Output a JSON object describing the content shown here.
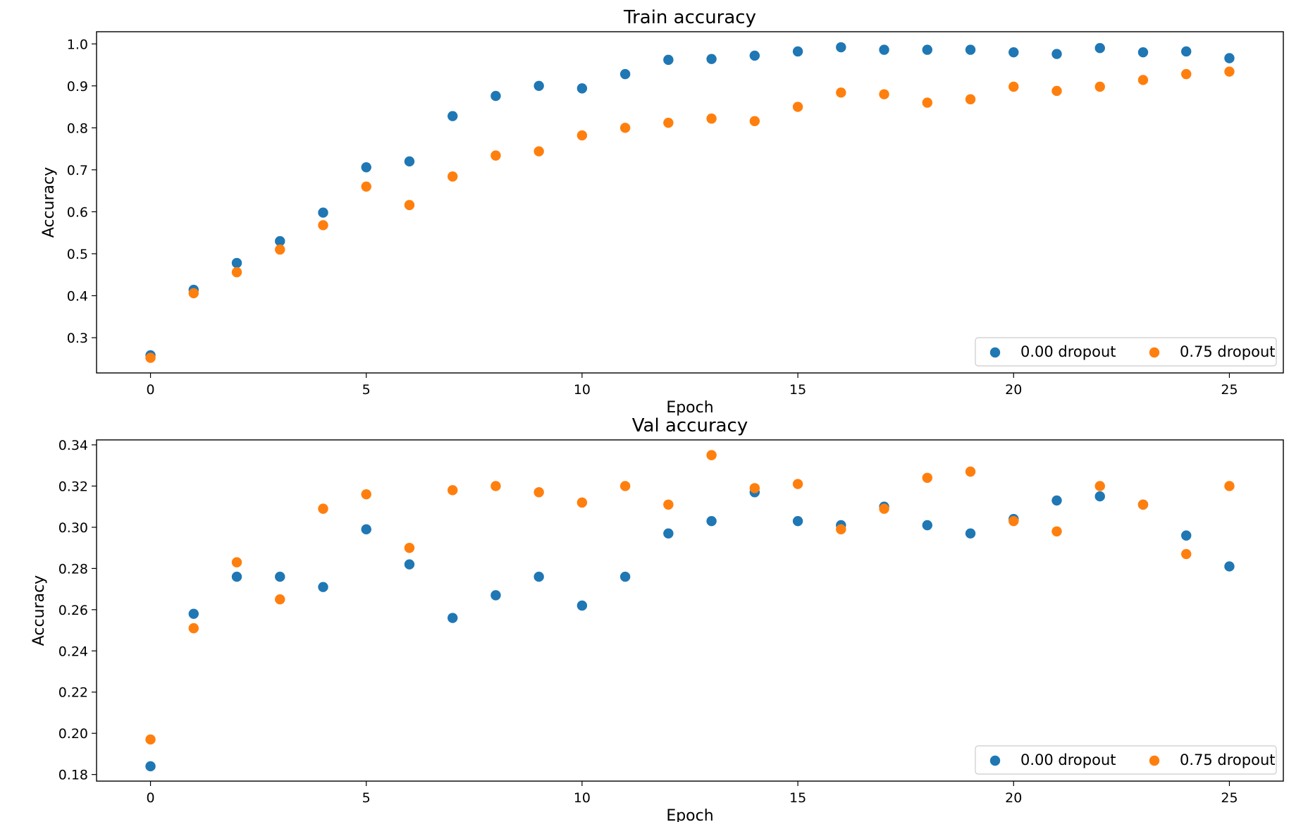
{
  "colors": {
    "series0": "#1f77b4",
    "series1": "#ff7f0e"
  },
  "chart_data": [
    {
      "type": "scatter",
      "title": "Train accuracy",
      "xlabel": "Epoch",
      "ylabel": "Accuracy",
      "xlim": [
        -1.25,
        26.25
      ],
      "ylim": [
        0.216,
        1.029
      ],
      "xticks": [
        0,
        5,
        10,
        15,
        20,
        25
      ],
      "yticks": [
        0.3,
        0.4,
        0.5,
        0.6,
        0.7,
        0.8,
        0.9,
        1.0
      ],
      "xtick_labels": [
        "0",
        "5",
        "10",
        "15",
        "20",
        "25"
      ],
      "ytick_labels": [
        "0.3",
        "0.4",
        "0.5",
        "0.6",
        "0.7",
        "0.8",
        "0.9",
        "1.0"
      ],
      "grid": false,
      "legend_position": "lower right",
      "x": [
        0,
        1,
        2,
        3,
        4,
        5,
        6,
        7,
        8,
        9,
        10,
        11,
        12,
        13,
        14,
        15,
        16,
        17,
        18,
        19,
        20,
        21,
        22,
        23,
        24,
        25
      ],
      "series": [
        {
          "name": "0.00 dropout",
          "color": "#1f77b4",
          "values": [
            0.258,
            0.414,
            0.478,
            0.53,
            0.598,
            0.706,
            0.72,
            0.828,
            0.876,
            0.9,
            0.894,
            0.928,
            0.962,
            0.964,
            0.972,
            0.982,
            0.992,
            0.986,
            0.986,
            0.986,
            0.98,
            0.976,
            0.99,
            0.98,
            0.982,
            0.966
          ]
        },
        {
          "name": "0.75 dropout",
          "color": "#ff7f0e",
          "values": [
            0.252,
            0.406,
            0.456,
            0.51,
            0.568,
            0.66,
            0.616,
            0.684,
            0.734,
            0.744,
            0.782,
            0.8,
            0.812,
            0.822,
            0.816,
            0.85,
            0.884,
            0.88,
            0.86,
            0.868,
            0.898,
            0.888,
            0.898,
            0.914,
            0.928,
            0.934
          ]
        }
      ]
    },
    {
      "type": "scatter",
      "title": "Val accuracy",
      "xlabel": "Epoch",
      "ylabel": "Accuracy",
      "xlim": [
        -1.25,
        26.25
      ],
      "ylim": [
        0.1768,
        0.3424
      ],
      "xticks": [
        0,
        5,
        10,
        15,
        20,
        25
      ],
      "yticks": [
        0.18,
        0.2,
        0.22,
        0.24,
        0.26,
        0.28,
        0.3,
        0.32,
        0.34
      ],
      "xtick_labels": [
        "0",
        "5",
        "10",
        "15",
        "20",
        "25"
      ],
      "ytick_labels": [
        "0.18",
        "0.20",
        "0.22",
        "0.24",
        "0.26",
        "0.28",
        "0.30",
        "0.32",
        "0.34"
      ],
      "grid": false,
      "legend_position": "lower right",
      "x": [
        0,
        1,
        2,
        3,
        4,
        5,
        6,
        7,
        8,
        9,
        10,
        11,
        12,
        13,
        14,
        15,
        16,
        17,
        18,
        19,
        20,
        21,
        22,
        23,
        24,
        25
      ],
      "series": [
        {
          "name": "0.00 dropout",
          "color": "#1f77b4",
          "values": [
            0.184,
            0.258,
            0.276,
            0.276,
            0.271,
            0.299,
            0.282,
            0.256,
            0.267,
            0.276,
            0.262,
            0.276,
            0.297,
            0.303,
            0.317,
            0.303,
            0.301,
            0.31,
            0.301,
            0.297,
            0.304,
            0.313,
            0.315,
            0.311,
            0.296,
            0.281
          ]
        },
        {
          "name": "0.75 dropout",
          "color": "#ff7f0e",
          "values": [
            0.197,
            0.251,
            0.283,
            0.265,
            0.309,
            0.316,
            0.29,
            0.318,
            0.32,
            0.317,
            0.312,
            0.32,
            0.311,
            0.335,
            0.319,
            0.321,
            0.299,
            0.309,
            0.324,
            0.327,
            0.303,
            0.298,
            0.32,
            0.311,
            0.287,
            0.32
          ]
        }
      ]
    }
  ]
}
